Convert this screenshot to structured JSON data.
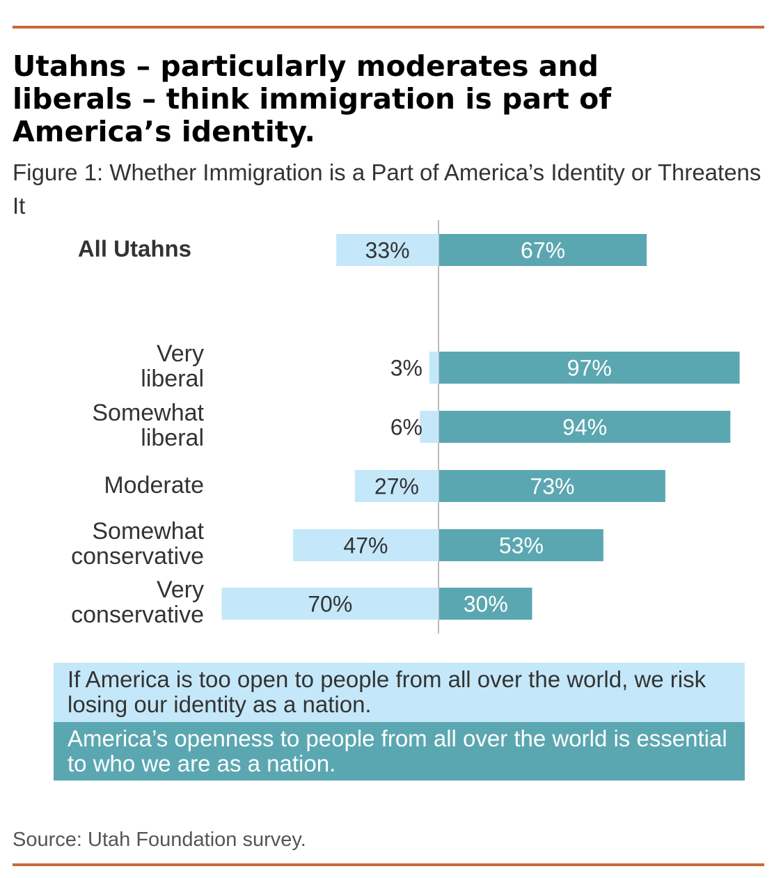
{
  "title": "Utahns – particularly moderates and liberals – think immigration is part of America’s identity.",
  "subtitle": "Figure 1: Whether Immigration is a Part of America’s Identity or Threatens It",
  "source": "Source: Utah Foundation survey.",
  "colors": {
    "rule": "#c8693a",
    "threat": "#c4e8f9",
    "essential": "#5ba7b1",
    "axis": "#bbbbbb"
  },
  "legend": {
    "threat": "If America is too open to people from all over the world, we risk losing our identity as a nation.",
    "essential": "America’s openness to people from all over the world is essential to who we are as a nation."
  },
  "chart_data": {
    "type": "bar",
    "orientation": "horizontal-diverging",
    "categories": [
      "All Utahns",
      "Very liberal",
      "Somewhat liberal",
      "Moderate",
      "Somewhat conservative",
      "Very conservative"
    ],
    "category_lines": [
      [
        "All Utahns"
      ],
      [
        "Very",
        "liberal"
      ],
      [
        "Somewhat",
        "liberal"
      ],
      [
        "Moderate"
      ],
      [
        "Somewhat",
        "conservative"
      ],
      [
        "Very",
        "conservative"
      ]
    ],
    "series": [
      {
        "name": "If America is too open to people from all over the world, we risk losing our identity as a nation.",
        "values": [
          33,
          3,
          6,
          27,
          47,
          70
        ],
        "labels": [
          "33%",
          "3%",
          "6%",
          "27%",
          "47%",
          "70%"
        ],
        "color": "#c4e8f9"
      },
      {
        "name": "America’s openness to people from all over the world is essential to who we are as a nation.",
        "values": [
          67,
          97,
          94,
          73,
          53,
          30
        ],
        "labels": [
          "67%",
          "97%",
          "94%",
          "73%",
          "53%",
          "30%"
        ],
        "color": "#5ba7b1"
      }
    ],
    "unit": "%",
    "grid": false
  }
}
